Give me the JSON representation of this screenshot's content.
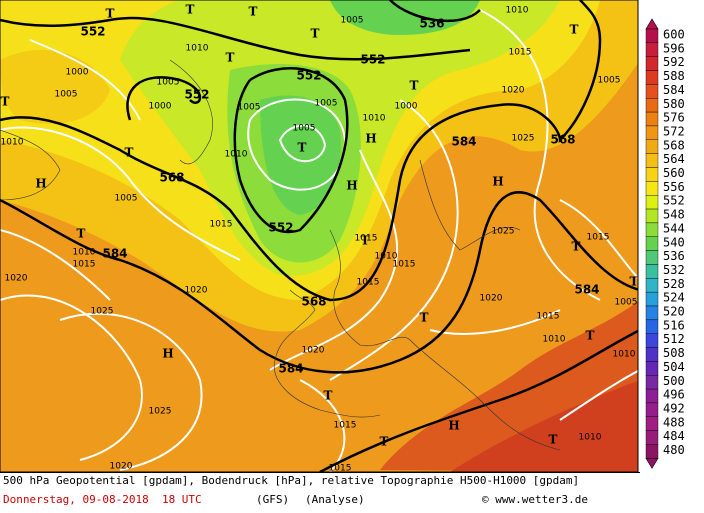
{
  "caption": {
    "title": "500 hPa Geopotential [gpdam], Bodendruck [hPa], relative Topographie H500-H1000 [gpdam]",
    "date": "Donnerstag, 09-08-2018  18 UTC",
    "model": "(GFS)",
    "mode": "(Analyse)",
    "credit": "© www.wetter3.de"
  },
  "legend": {
    "values": [
      600,
      596,
      592,
      588,
      584,
      580,
      576,
      572,
      568,
      564,
      560,
      556,
      552,
      548,
      544,
      540,
      536,
      532,
      528,
      524,
      520,
      516,
      512,
      508,
      504,
      500,
      496,
      492,
      488,
      484,
      480
    ],
    "colors": [
      "#b4104c",
      "#c81e3c",
      "#d2282d",
      "#dc3c1e",
      "#e6501e",
      "#e86a14",
      "#ec8214",
      "#f09614",
      "#f0aa14",
      "#f5be14",
      "#f8d214",
      "#f5e614",
      "#dcf014",
      "#b4e628",
      "#8cdc3c",
      "#64d250",
      "#50c878",
      "#3cbea0",
      "#32b4c8",
      "#28a0dc",
      "#2882e6",
      "#2864e6",
      "#3c46dc",
      "#5032c8",
      "#6428b4",
      "#7828a0",
      "#8c1e96",
      "#961e8c",
      "#a01e82",
      "#961e78",
      "#8c1464"
    ]
  },
  "contour_labels": [
    "552",
    "536",
    "552",
    "552",
    "552",
    "568",
    "584",
    "552",
    "568",
    "584",
    "568",
    "584",
    "584"
  ],
  "pressure_labels": [
    "1005",
    "1010",
    "1015",
    "1020",
    "1025",
    "1005",
    "1010",
    "1005",
    "1000",
    "1005",
    "1000",
    "1010",
    "1005",
    "1005",
    "1010",
    "1005",
    "1010",
    "1000",
    "1005",
    "1015",
    "1010",
    "1015",
    "1020",
    "1020",
    "1025",
    "1015",
    "1010",
    "1015",
    "1015",
    "1025",
    "1020",
    "1015",
    "1015",
    "1005",
    "1010",
    "1010",
    "1020",
    "1025",
    "1015",
    "1010",
    "1020",
    "1015"
  ],
  "center_labels": [
    "T",
    "T",
    "T",
    "T",
    "T",
    "T",
    "T",
    "T",
    "T",
    "H",
    "H",
    "H",
    "H",
    "T",
    "T",
    "T",
    "T",
    "T",
    "T",
    "H",
    "T",
    "H",
    "T",
    "T",
    "T"
  ]
}
